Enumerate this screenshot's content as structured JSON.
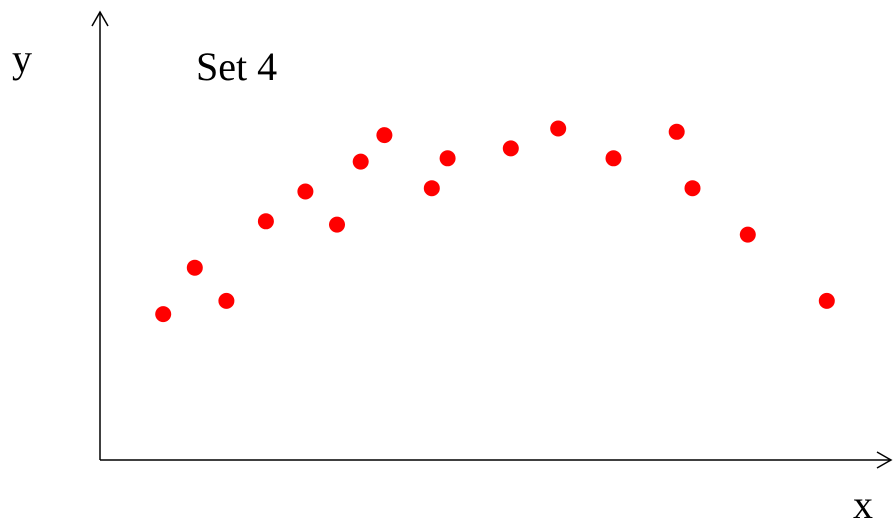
{
  "chart_data": {
    "type": "scatter",
    "title": "Set 4",
    "xlabel": "x",
    "ylabel": "y",
    "xlim": [
      0,
      10
    ],
    "ylim": [
      0,
      10
    ],
    "grid": false,
    "point_color": "#ff0000",
    "series": [
      {
        "x": [
          0.8,
          1.2,
          1.6,
          2.1,
          2.6,
          3.0,
          3.3,
          3.6,
          4.2,
          4.4,
          5.2,
          5.8,
          6.5,
          7.3,
          7.5,
          8.2,
          9.2
        ],
        "y": [
          4.4,
          5.8,
          4.8,
          7.2,
          8.1,
          7.1,
          9.0,
          9.8,
          8.2,
          9.1,
          9.4,
          10.0,
          9.1,
          9.9,
          8.2,
          6.8,
          4.8
        ]
      }
    ]
  }
}
